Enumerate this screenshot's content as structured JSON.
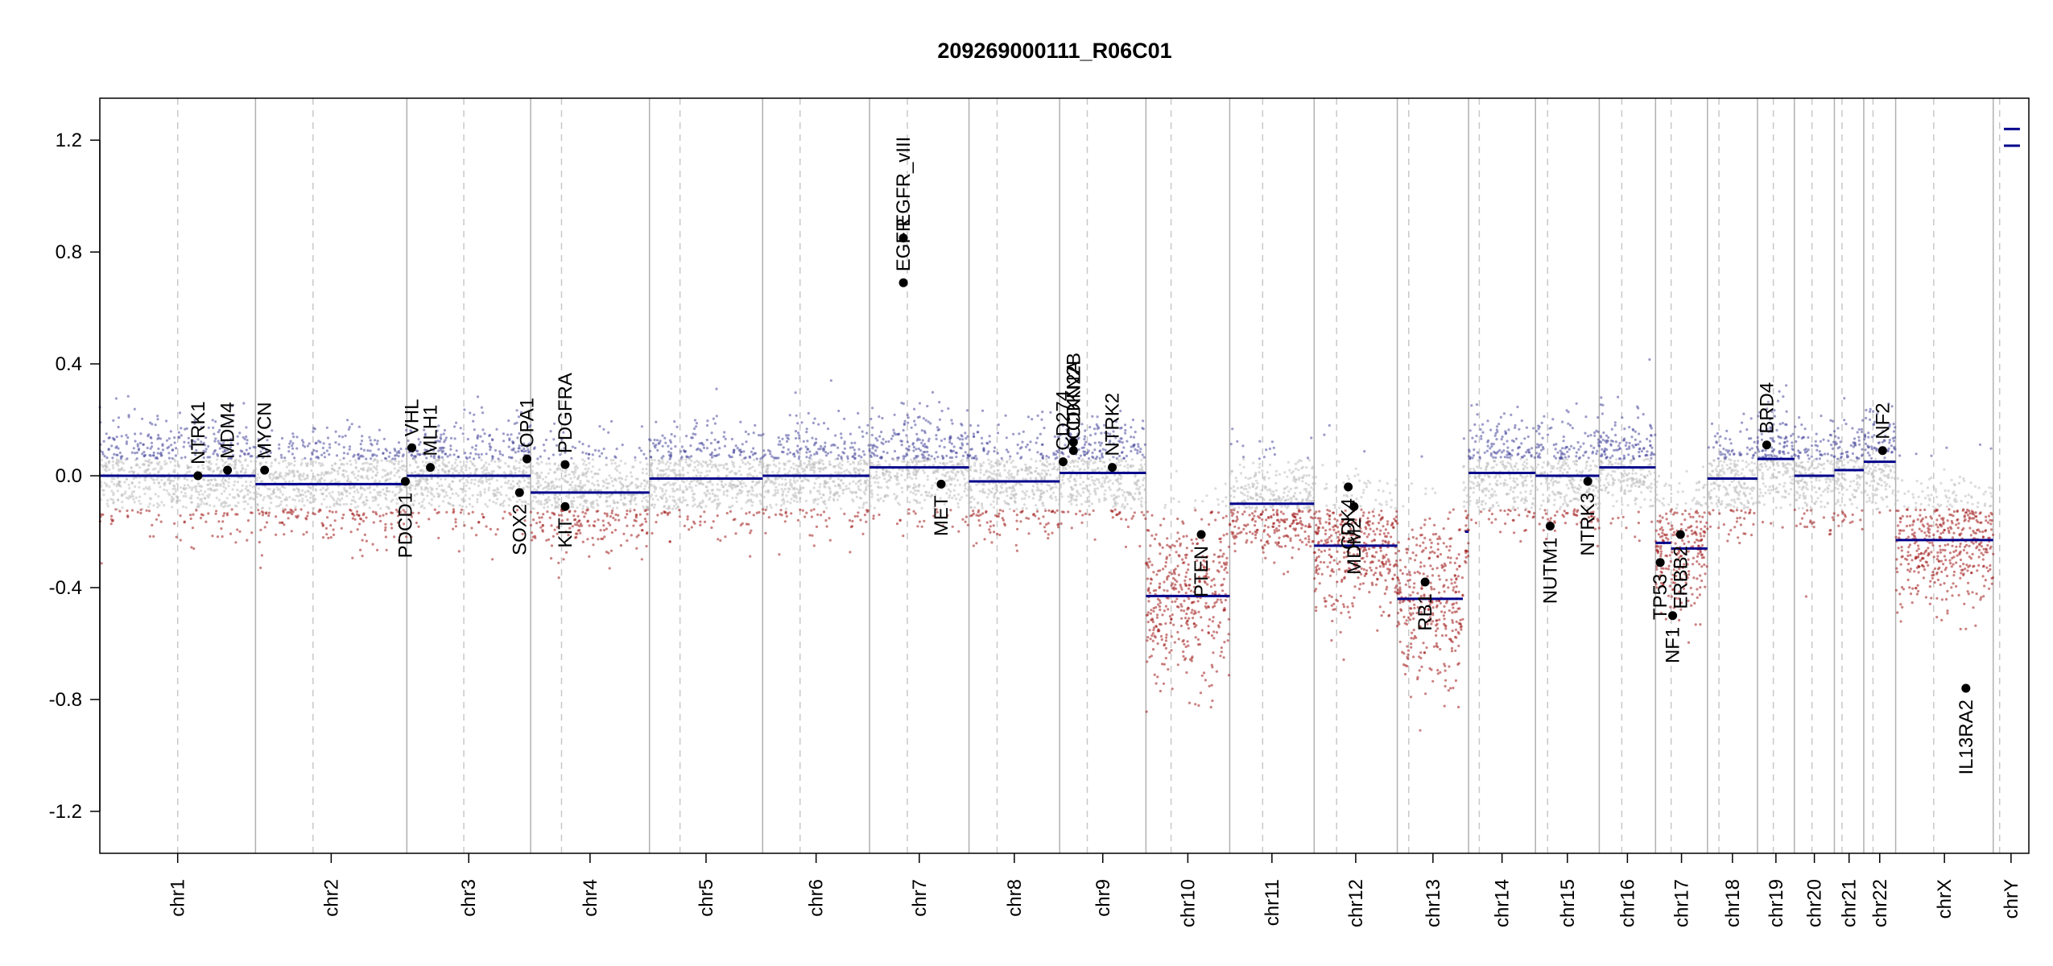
{
  "chart_data": {
    "type": "scatter",
    "title": "209269000111_R06C01",
    "xlabel": "",
    "ylabel": "",
    "ylim": [
      -1.35,
      1.35
    ],
    "yticks": [
      1.2,
      0.8,
      0.4,
      0.0,
      -0.4,
      -0.8,
      -1.2
    ],
    "ytick_labels": [
      "1.2",
      "0.8",
      "0.4",
      "0.0",
      "-0.4",
      "-0.8",
      "-1.2"
    ],
    "chromosomes": [
      {
        "name": "chr1",
        "length": 249,
        "centromere": 0.5
      },
      {
        "name": "chr2",
        "length": 242,
        "centromere": 0.38
      },
      {
        "name": "chr3",
        "length": 198,
        "centromere": 0.46
      },
      {
        "name": "chr4",
        "length": 190,
        "centromere": 0.26
      },
      {
        "name": "chr5",
        "length": 181,
        "centromere": 0.27
      },
      {
        "name": "chr6",
        "length": 171,
        "centromere": 0.35
      },
      {
        "name": "chr7",
        "length": 159,
        "centromere": 0.38
      },
      {
        "name": "chr8",
        "length": 145,
        "centromere": 0.31
      },
      {
        "name": "chr9",
        "length": 138,
        "centromere": 0.32
      },
      {
        "name": "chr10",
        "length": 134,
        "centromere": 0.3
      },
      {
        "name": "chr11",
        "length": 135,
        "centromere": 0.39
      },
      {
        "name": "chr12",
        "length": 133,
        "centromere": 0.27
      },
      {
        "name": "chr13",
        "length": 114,
        "centromere": 0.16
      },
      {
        "name": "chr14",
        "length": 107,
        "centromere": 0.16
      },
      {
        "name": "chr15",
        "length": 102,
        "centromere": 0.19
      },
      {
        "name": "chr16",
        "length": 90,
        "centromere": 0.4
      },
      {
        "name": "chr17",
        "length": 83,
        "centromere": 0.3
      },
      {
        "name": "chr18",
        "length": 80,
        "centromere": 0.23
      },
      {
        "name": "chr19",
        "length": 59,
        "centromere": 0.43
      },
      {
        "name": "chr20",
        "length": 64,
        "centromere": 0.44
      },
      {
        "name": "chr21",
        "length": 47,
        "centromere": 0.26
      },
      {
        "name": "chr22",
        "length": 51,
        "centromere": 0.29
      },
      {
        "name": "chrX",
        "length": 156,
        "centromere": 0.39
      },
      {
        "name": "chrY",
        "length": 57,
        "centromere": 0.18
      }
    ],
    "segments": [
      {
        "chrom": "chr1",
        "start": 0.0,
        "end": 1.0,
        "value": 0.0
      },
      {
        "chrom": "chr2",
        "start": 0.0,
        "end": 1.0,
        "value": -0.03
      },
      {
        "chrom": "chr3",
        "start": 0.0,
        "end": 1.0,
        "value": 0.0
      },
      {
        "chrom": "chr4",
        "start": 0.0,
        "end": 1.0,
        "value": -0.06
      },
      {
        "chrom": "chr5",
        "start": 0.0,
        "end": 1.0,
        "value": -0.01
      },
      {
        "chrom": "chr6",
        "start": 0.0,
        "end": 1.0,
        "value": 0.0
      },
      {
        "chrom": "chr7",
        "start": 0.0,
        "end": 0.32,
        "value": 0.03
      },
      {
        "chrom": "chr7",
        "start": 0.32,
        "end": 1.0,
        "value": 0.03
      },
      {
        "chrom": "chr8",
        "start": 0.0,
        "end": 1.0,
        "value": -0.02
      },
      {
        "chrom": "chr9",
        "start": 0.0,
        "end": 1.0,
        "value": 0.01
      },
      {
        "chrom": "chr10",
        "start": 0.0,
        "end": 1.0,
        "value": -0.43
      },
      {
        "chrom": "chr11",
        "start": 0.0,
        "end": 1.0,
        "value": -0.1
      },
      {
        "chrom": "chr12",
        "start": 0.0,
        "end": 1.0,
        "value": -0.25
      },
      {
        "chrom": "chr13",
        "start": 0.0,
        "end": 0.92,
        "value": -0.44
      },
      {
        "chrom": "chr13",
        "start": 0.95,
        "end": 1.0,
        "value": -0.2
      },
      {
        "chrom": "chr14",
        "start": 0.0,
        "end": 1.0,
        "value": 0.01
      },
      {
        "chrom": "chr15",
        "start": 0.0,
        "end": 1.0,
        "value": 0.0
      },
      {
        "chrom": "chr16",
        "start": 0.0,
        "end": 1.0,
        "value": 0.03
      },
      {
        "chrom": "chr17",
        "start": 0.0,
        "end": 0.3,
        "value": -0.24
      },
      {
        "chrom": "chr17",
        "start": 0.3,
        "end": 1.0,
        "value": -0.26
      },
      {
        "chrom": "chr18",
        "start": 0.0,
        "end": 1.0,
        "value": -0.01
      },
      {
        "chrom": "chr19",
        "start": 0.0,
        "end": 1.0,
        "value": 0.06
      },
      {
        "chrom": "chr20",
        "start": 0.0,
        "end": 1.0,
        "value": 0.0
      },
      {
        "chrom": "chr21",
        "start": 0.0,
        "end": 1.0,
        "value": 0.02
      },
      {
        "chrom": "chr22",
        "start": 0.0,
        "end": 1.0,
        "value": 0.05
      },
      {
        "chrom": "chrX",
        "start": 0.0,
        "end": 1.0,
        "value": -0.23
      },
      {
        "chrom": "chrY",
        "start": 0.3,
        "end": 0.75,
        "value": 1.18
      },
      {
        "chrom": "chrY",
        "start": 0.3,
        "end": 0.75,
        "value": 1.24
      }
    ],
    "genes": [
      {
        "name": "NTRK1",
        "chrom": "chr1",
        "pos": 0.63,
        "value": 0.0,
        "label_side": "above"
      },
      {
        "name": "MDM4",
        "chrom": "chr1",
        "pos": 0.82,
        "value": 0.02,
        "label_side": "above"
      },
      {
        "name": "MYCN",
        "chrom": "chr2",
        "pos": 0.06,
        "value": 0.02,
        "label_side": "above"
      },
      {
        "name": "PDCD1",
        "chrom": "chr2",
        "pos": 0.99,
        "value": -0.02,
        "label_side": "below"
      },
      {
        "name": "VHL",
        "chrom": "chr3",
        "pos": 0.04,
        "value": 0.1,
        "label_side": "above"
      },
      {
        "name": "MLH1",
        "chrom": "chr3",
        "pos": 0.19,
        "value": 0.03,
        "label_side": "above"
      },
      {
        "name": "SOX2",
        "chrom": "chr3",
        "pos": 0.91,
        "value": -0.06,
        "label_side": "below"
      },
      {
        "name": "OPA1",
        "chrom": "chr3",
        "pos": 0.97,
        "value": 0.06,
        "label_side": "above"
      },
      {
        "name": "PDGFRA",
        "chrom": "chr4",
        "pos": 0.29,
        "value": 0.04,
        "label_side": "above"
      },
      {
        "name": "KIT",
        "chrom": "chr4",
        "pos": 0.29,
        "value": -0.11,
        "label_side": "below"
      },
      {
        "name": "EGFR",
        "chrom": "chr7",
        "pos": 0.34,
        "value": 0.69,
        "label_side": "above"
      },
      {
        "name": "EGFR_vIII",
        "chrom": "chr7",
        "pos": 0.34,
        "value": 0.85,
        "label_side": "above"
      },
      {
        "name": "MET",
        "chrom": "chr7",
        "pos": 0.72,
        "value": -0.03,
        "label_side": "below"
      },
      {
        "name": "CD274",
        "chrom": "chr9",
        "pos": 0.04,
        "value": 0.05,
        "label_side": "above"
      },
      {
        "name": "CDKN2A",
        "chrom": "chr9",
        "pos": 0.16,
        "value": 0.09,
        "label_side": "above"
      },
      {
        "name": "CDKN2B",
        "chrom": "chr9",
        "pos": 0.16,
        "value": 0.12,
        "label_side": "above"
      },
      {
        "name": "NTRK2",
        "chrom": "chr9",
        "pos": 0.61,
        "value": 0.03,
        "label_side": "above"
      },
      {
        "name": "PTEN",
        "chrom": "chr10",
        "pos": 0.66,
        "value": -0.21,
        "label_side": "below"
      },
      {
        "name": "CDK4",
        "chrom": "chr12",
        "pos": 0.41,
        "value": -0.04,
        "label_side": "below"
      },
      {
        "name": "MDM2",
        "chrom": "chr12",
        "pos": 0.48,
        "value": -0.11,
        "label_side": "below"
      },
      {
        "name": "RB1",
        "chrom": "chr13",
        "pos": 0.39,
        "value": -0.38,
        "label_side": "below"
      },
      {
        "name": "NUTM1",
        "chrom": "chr15",
        "pos": 0.23,
        "value": -0.18,
        "label_side": "below"
      },
      {
        "name": "NTRK3",
        "chrom": "chr15",
        "pos": 0.82,
        "value": -0.02,
        "label_side": "below"
      },
      {
        "name": "TP53",
        "chrom": "chr17",
        "pos": 0.09,
        "value": -0.31,
        "label_side": "below"
      },
      {
        "name": "NF1",
        "chrom": "chr17",
        "pos": 0.33,
        "value": -0.5,
        "label_side": "below"
      },
      {
        "name": "ERBB2",
        "chrom": "chr17",
        "pos": 0.48,
        "value": -0.21,
        "label_side": "below"
      },
      {
        "name": "BRD4",
        "chrom": "chr19",
        "pos": 0.25,
        "value": 0.11,
        "label_side": "above"
      },
      {
        "name": "NF2",
        "chrom": "chr22",
        "pos": 0.59,
        "value": 0.09,
        "label_side": "above"
      },
      {
        "name": "IL13RA2",
        "chrom": "chrX",
        "pos": 0.72,
        "value": -0.76,
        "label_side": "below"
      }
    ],
    "grid": false,
    "legend": "none",
    "colors": {
      "segment": "#00008B",
      "gain": "#4A4A9E",
      "loss": "#A11A1A",
      "neutral": "#BEBEBE",
      "chrom_divider": "#B0B0B0",
      "centromere": "#C8C8C8",
      "gene_dot": "#000000"
    }
  }
}
